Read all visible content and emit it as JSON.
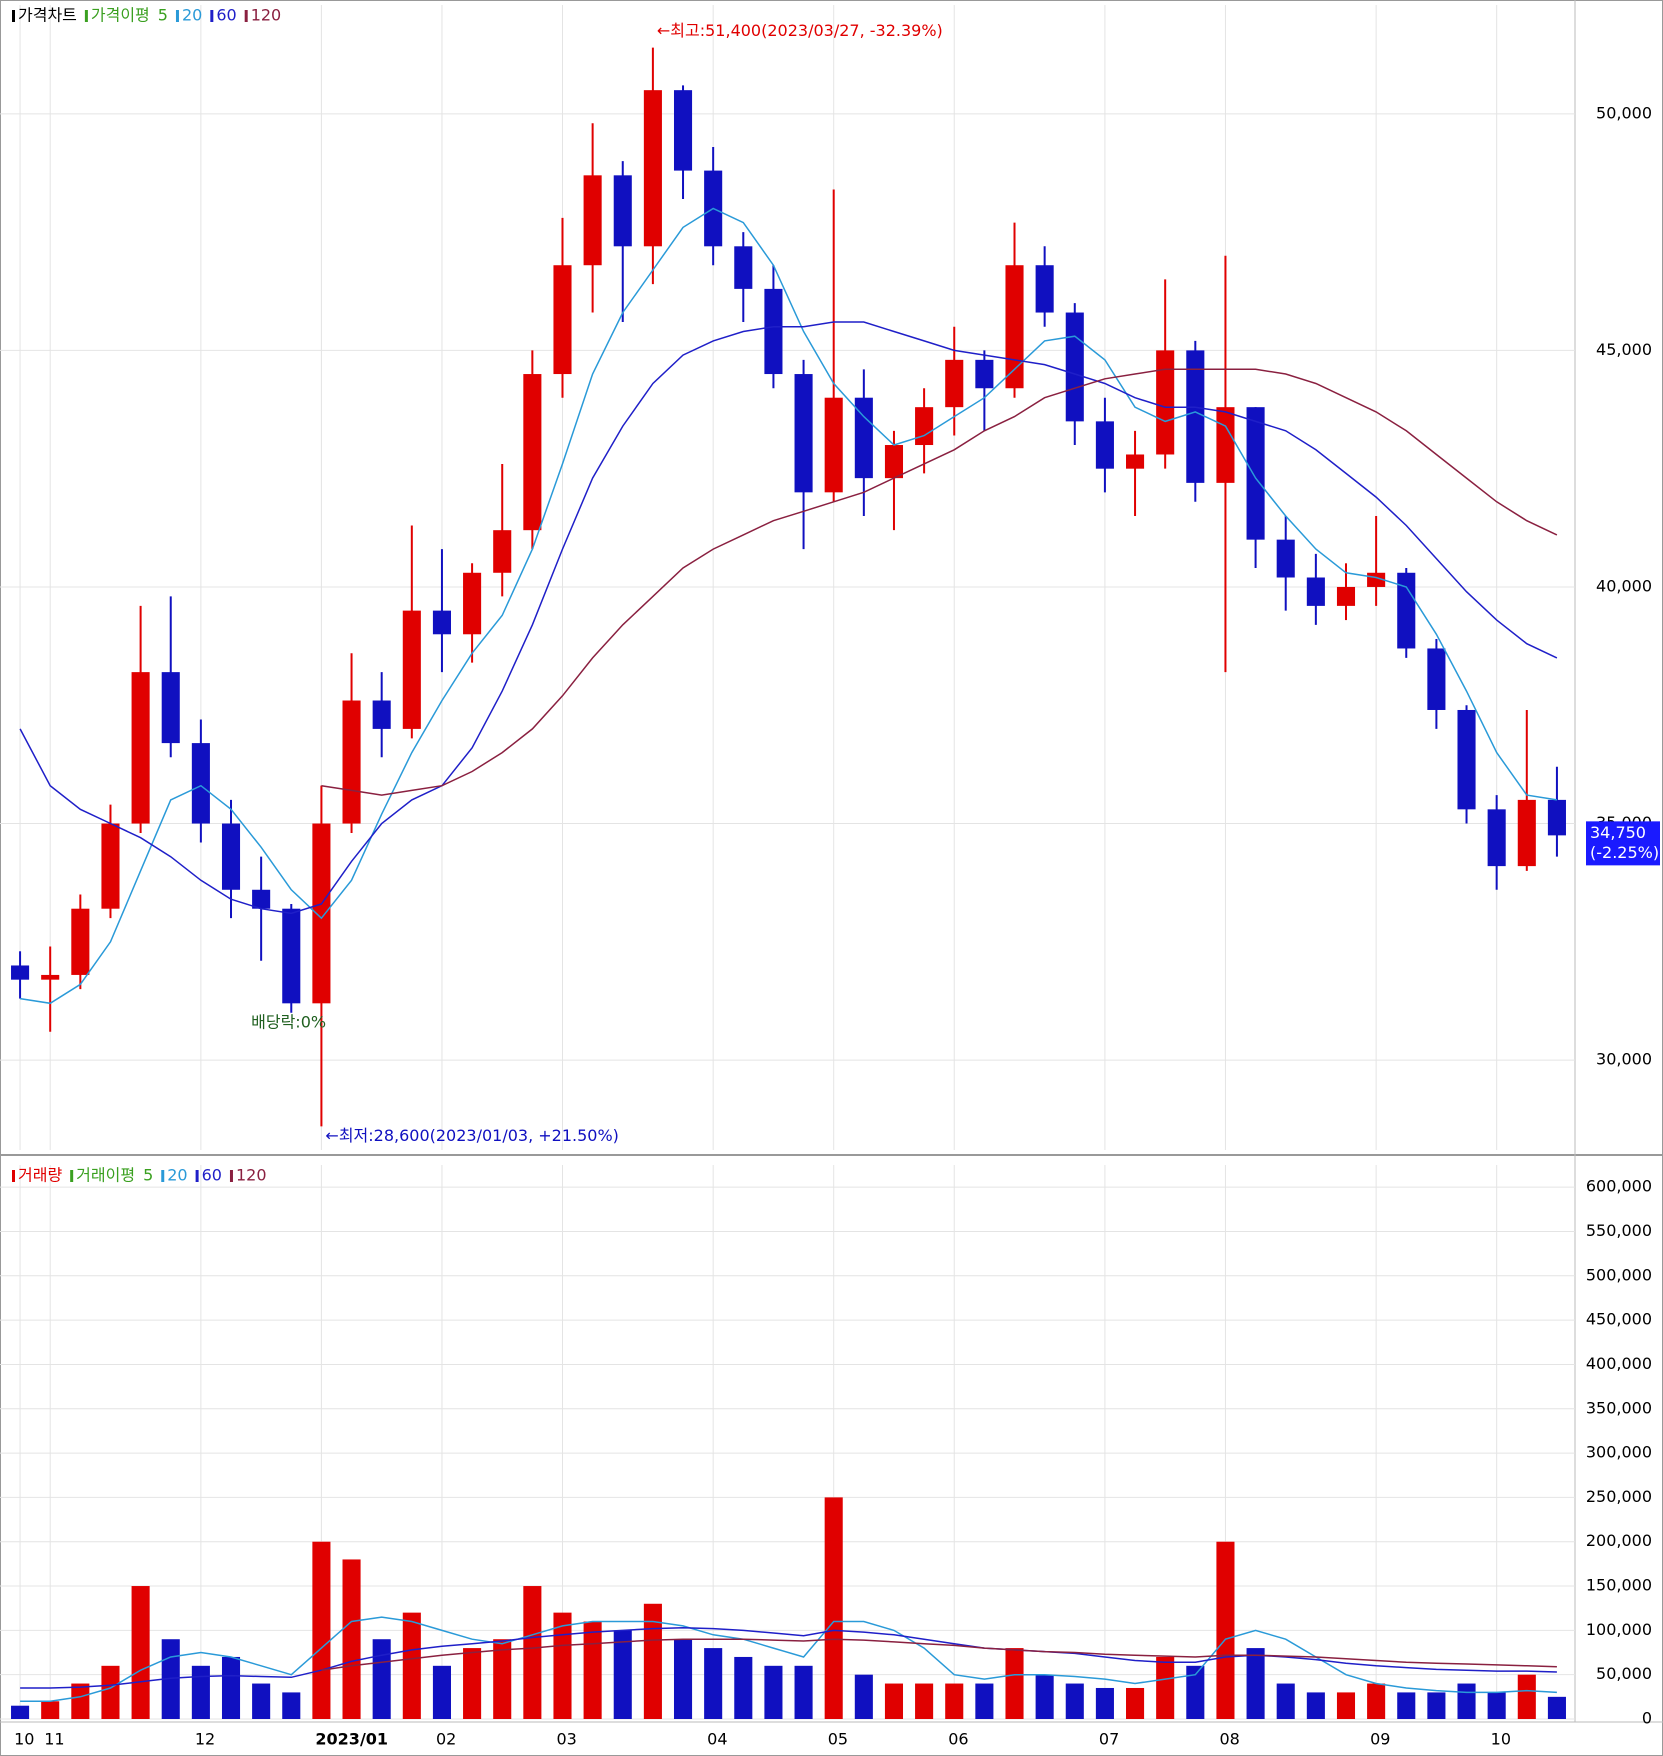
{
  "chart_data": [
    {
      "type": "candlestick",
      "legend": [
        "가격차트",
        "가격이평",
        "5",
        "20",
        "60",
        "120"
      ],
      "up_color": "#e00000",
      "down_color": "#1010c0",
      "open": [
        32000,
        31700,
        31800,
        33200,
        35000,
        38200,
        36700,
        35000,
        33600,
        33200,
        31200,
        35000,
        37600,
        37000,
        39500,
        39000,
        40300,
        41200,
        44500,
        46800,
        48700,
        47200,
        50500,
        48800,
        47200,
        46300,
        44500,
        42000,
        44000,
        42300,
        43000,
        43800,
        44800,
        44200,
        46800,
        45800,
        43500,
        42500,
        42800,
        45000,
        42200,
        43800,
        41000,
        40200,
        39600,
        40000,
        40300,
        38700,
        37400,
        35300,
        34100,
        35500
      ],
      "high": [
        32300,
        32400,
        33500,
        35400,
        39600,
        39800,
        37200,
        35500,
        34300,
        33300,
        35800,
        38600,
        38200,
        41300,
        40800,
        40500,
        42600,
        45000,
        47800,
        49800,
        49000,
        51400,
        50600,
        49300,
        47500,
        46800,
        44800,
        48400,
        44600,
        43300,
        44200,
        45500,
        45000,
        47700,
        47200,
        46000,
        44000,
        43300,
        46500,
        45200,
        47000,
        43800,
        41500,
        40700,
        40500,
        41500,
        40400,
        38900,
        37500,
        35600,
        37400,
        36200
      ],
      "low": [
        31300,
        30600,
        31500,
        33000,
        34800,
        36400,
        34600,
        33000,
        32100,
        31000,
        28600,
        34800,
        36400,
        36800,
        38200,
        38400,
        39800,
        40800,
        44000,
        45800,
        45600,
        46400,
        48200,
        46800,
        45600,
        44200,
        40800,
        41800,
        41500,
        41200,
        42400,
        43200,
        43300,
        44000,
        45500,
        43000,
        42000,
        41500,
        42500,
        41800,
        38200,
        40400,
        39500,
        39200,
        39300,
        39600,
        38500,
        37000,
        35000,
        33600,
        34000,
        34300
      ],
      "close": [
        31700,
        31800,
        33200,
        35000,
        38200,
        36700,
        35000,
        33600,
        33200,
        31200,
        35000,
        37600,
        37000,
        39500,
        39000,
        40300,
        41200,
        44500,
        46800,
        48700,
        47200,
        50500,
        48800,
        47200,
        46300,
        44500,
        42000,
        44000,
        42300,
        43000,
        43800,
        44800,
        44200,
        46800,
        45800,
        43500,
        42500,
        42800,
        45000,
        42200,
        43800,
        41000,
        40200,
        39600,
        40000,
        40300,
        38700,
        37400,
        35300,
        34100,
        35500,
        34750
      ],
      "ma": [
        {
          "color": "#2a9ad8",
          "values": [
            31300,
            31200,
            31600,
            32500,
            34000,
            35500,
            35800,
            35300,
            34500,
            33600,
            33000,
            33800,
            35200,
            36500,
            37600,
            38600,
            39400,
            40800,
            42600,
            44500,
            45800,
            46700,
            47600,
            48000,
            47700,
            46800,
            45400,
            44300,
            43600,
            43000,
            43200,
            43600,
            44000,
            44600,
            45200,
            45300,
            44800,
            43800,
            43500,
            43700,
            43400,
            42300,
            41500,
            40800,
            40300,
            40200,
            40000,
            39000,
            37800,
            36500,
            35600,
            35500
          ]
        },
        {
          "color": "#1f1fc8",
          "values": [
            37000,
            35800,
            35300,
            35000,
            34700,
            34300,
            33800,
            33400,
            33200,
            33100,
            33300,
            34200,
            35000,
            35500,
            35800,
            36600,
            37800,
            39200,
            40800,
            42300,
            43400,
            44300,
            44900,
            45200,
            45400,
            45500,
            45500,
            45600,
            45600,
            45400,
            45200,
            45000,
            44900,
            44800,
            44700,
            44500,
            44300,
            44000,
            43800,
            43800,
            43700,
            43500,
            43300,
            42900,
            42400,
            41900,
            41300,
            40600,
            39900,
            39300,
            38800,
            38500
          ]
        },
        {
          "color": "#8a2040",
          "values": [
            null,
            null,
            null,
            null,
            null,
            null,
            null,
            null,
            null,
            null,
            35800,
            35700,
            35600,
            35700,
            35800,
            36100,
            36500,
            37000,
            37700,
            38500,
            39200,
            39800,
            40400,
            40800,
            41100,
            41400,
            41600,
            41800,
            42000,
            42300,
            42600,
            42900,
            43300,
            43600,
            44000,
            44200,
            44400,
            44500,
            44600,
            44600,
            44600,
            44600,
            44500,
            44300,
            44000,
            43700,
            43300,
            42800,
            42300,
            41800,
            41400,
            41100
          ]
        }
      ],
      "ylim": [
        28100,
        52300
      ],
      "yticks": [
        {
          "value": 30000,
          "label": "30,000"
        },
        {
          "value": 35000,
          "label": "35,000"
        },
        {
          "value": 40000,
          "label": "40,000"
        },
        {
          "value": 45000,
          "label": "45,000"
        },
        {
          "value": 50000,
          "label": "50,000"
        }
      ],
      "high_annotation": "←최고:51,400(2023/03/27, -32.39%)",
      "low_annotation": "←최저:28,600(2023/01/03, +21.50%)",
      "dividend_annotation": "배당락:0%",
      "last_price": {
        "value": 34750,
        "label": "34,750",
        "change": "(-2.25%)"
      }
    },
    {
      "type": "bar",
      "legend": [
        "거래량",
        "거래이평",
        "5",
        "20",
        "60",
        "120"
      ],
      "categories": [
        "10",
        "11",
        null,
        null,
        null,
        null,
        "12",
        null,
        null,
        null,
        "2023/01",
        null,
        null,
        null,
        "02",
        null,
        null,
        null,
        "03",
        null,
        null,
        null,
        null,
        "04",
        null,
        null,
        null,
        "05",
        null,
        null,
        null,
        "06",
        null,
        null,
        null,
        null,
        "07",
        null,
        null,
        null,
        "08",
        null,
        null,
        null,
        null,
        "09",
        null,
        null,
        null,
        "10",
        null,
        null
      ],
      "values": [
        15000,
        20000,
        40000,
        60000,
        150000,
        90000,
        60000,
        70000,
        40000,
        30000,
        200000,
        180000,
        90000,
        120000,
        60000,
        80000,
        90000,
        150000,
        120000,
        110000,
        100000,
        130000,
        90000,
        80000,
        70000,
        60000,
        60000,
        250000,
        50000,
        40000,
        40000,
        40000,
        40000,
        80000,
        50000,
        40000,
        35000,
        35000,
        70000,
        60000,
        200000,
        80000,
        40000,
        30000,
        30000,
        40000,
        30000,
        30000,
        40000,
        30000,
        50000,
        25000
      ],
      "ma": [
        {
          "color": "#2a9ad8",
          "values": [
            20000,
            20000,
            25000,
            35000,
            55000,
            70000,
            75000,
            70000,
            60000,
            50000,
            80000,
            110000,
            115000,
            110000,
            100000,
            90000,
            85000,
            95000,
            105000,
            110000,
            110000,
            110000,
            105000,
            95000,
            90000,
            80000,
            70000,
            110000,
            110000,
            100000,
            80000,
            50000,
            45000,
            50000,
            50000,
            48000,
            45000,
            40000,
            45000,
            50000,
            90000,
            100000,
            90000,
            70000,
            50000,
            40000,
            35000,
            32000,
            30000,
            30000,
            32000,
            30000
          ]
        },
        {
          "color": "#1f1fc8",
          "values": [
            35000,
            35000,
            36000,
            38000,
            42000,
            46000,
            48000,
            49000,
            48000,
            47000,
            55000,
            65000,
            72000,
            78000,
            82000,
            85000,
            88000,
            92000,
            95000,
            98000,
            100000,
            102000,
            103000,
            102000,
            100000,
            97000,
            94000,
            100000,
            98000,
            95000,
            90000,
            85000,
            80000,
            78000,
            76000,
            74000,
            70000,
            66000,
            64000,
            64000,
            70000,
            72000,
            70000,
            67000,
            63000,
            60000,
            58000,
            56000,
            55000,
            54000,
            54000,
            53000
          ]
        },
        {
          "color": "#8a2040",
          "values": [
            null,
            null,
            null,
            null,
            null,
            null,
            null,
            null,
            null,
            null,
            55000,
            60000,
            64000,
            68000,
            72000,
            75000,
            78000,
            80000,
            83000,
            85000,
            87000,
            89000,
            90000,
            90000,
            90000,
            89000,
            88000,
            90000,
            89000,
            87000,
            85000,
            83000,
            80000,
            78000,
            76000,
            75000,
            73000,
            72000,
            71000,
            70000,
            72000,
            72000,
            71000,
            70000,
            68000,
            66000,
            64000,
            63000,
            62000,
            61000,
            60000,
            59000
          ]
        }
      ],
      "ylim": [
        0,
        625000
      ],
      "yticks": [
        0,
        {
          "value": 50000,
          "label": "50,000"
        },
        {
          "value": 100000,
          "label": "100,000"
        },
        {
          "value": 150000,
          "label": "150,000"
        },
        {
          "value": 200000,
          "label": "200,000"
        },
        {
          "value": 250000,
          "label": "250,000"
        },
        {
          "value": 300000,
          "label": "300,000"
        },
        {
          "value": 350000,
          "label": "350,000"
        },
        {
          "value": 400000,
          "label": "400,000"
        },
        {
          "value": 450000,
          "label": "450,000"
        },
        {
          "value": 500000,
          "label": "500,000"
        },
        {
          "value": 550000,
          "label": "550,000"
        },
        {
          "value": 600000,
          "label": "600,000"
        }
      ]
    }
  ]
}
